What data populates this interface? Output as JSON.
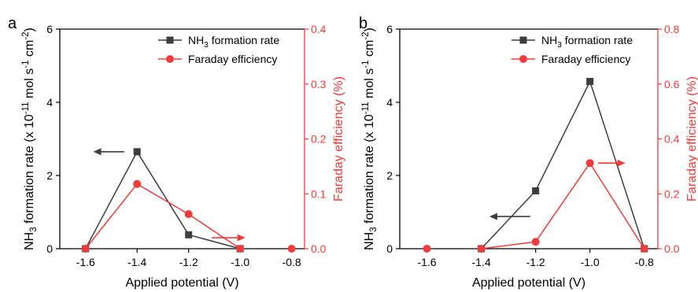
{
  "colors": {
    "rate": "#3d3d3d",
    "fe": "#ee3b3b",
    "axis": "#000000"
  },
  "chart_data": [
    {
      "panel_label": "a",
      "type": "line",
      "xlabel": "Applied potential (V)",
      "ylabel_left_parts": [
        "NH",
        "3",
        " formation rate (x 10",
        "-11",
        " mol s",
        "-1",
        " cm",
        "-2",
        ")"
      ],
      "ylabel_right": "Faraday efficiency (%)",
      "xlim": [
        -1.7,
        -0.75
      ],
      "ylim_left": [
        0,
        6
      ],
      "ylim_right": [
        0,
        0.4
      ],
      "xticks": [
        -1.6,
        -1.4,
        -1.2,
        -1.0,
        -0.8
      ],
      "xtick_labels": [
        "-1.6",
        "-1.4",
        "-1.2",
        "-1.0",
        "-0.8"
      ],
      "yticks_left": [
        0,
        2,
        4,
        6
      ],
      "yticks_left_labels": [
        "0",
        "2",
        "4",
        "6"
      ],
      "yticks_right": [
        0,
        0.1,
        0.2,
        0.3,
        0.4
      ],
      "yticks_right_labels": [
        "0.0",
        "0.1",
        "0.2",
        "0.3",
        "0.4"
      ],
      "legend": {
        "position": "top-right",
        "entries": [
          {
            "parts": [
              "NH",
              "3",
              " formation rate"
            ]
          },
          {
            "parts": [
              "Faraday efficiency"
            ]
          }
        ]
      },
      "series": [
        {
          "name": "NH3 formation rate",
          "axis": "left",
          "marker": "square",
          "x": [
            -1.6,
            -1.4,
            -1.2,
            -1.0
          ],
          "y": [
            0,
            2.65,
            0.38,
            0
          ]
        },
        {
          "name": "Faraday efficiency",
          "axis": "right",
          "marker": "circle",
          "x": [
            -1.6,
            -1.4,
            -1.2,
            -1.0
          ],
          "y": [
            0,
            0.118,
            0.063,
            0
          ]
        }
      ],
      "extra_markers": [
        {
          "series": "Faraday efficiency",
          "x": [
            -0.8
          ],
          "y": [
            0
          ]
        }
      ],
      "arrows": [
        {
          "direction": "left",
          "axis": "left",
          "x_from": -1.45,
          "x_to": -1.57,
          "y": 2.65
        },
        {
          "direction": "right",
          "axis": "right",
          "x_from": -1.11,
          "x_to": -0.98,
          "y": 0.02
        }
      ]
    },
    {
      "panel_label": "b",
      "type": "line",
      "xlabel": "Applied potential (V)",
      "ylabel_left_parts": [
        "NH",
        "3",
        " formation rate (x 10",
        "-11",
        " mol s",
        "-1",
        " cm",
        "-2",
        ")"
      ],
      "ylabel_right": "Faraday efficiency (%)",
      "xlim": [
        -1.7,
        -0.75
      ],
      "ylim_left": [
        0,
        6
      ],
      "ylim_right": [
        0,
        0.8
      ],
      "xticks": [
        -1.6,
        -1.4,
        -1.2,
        -1.0,
        -0.8
      ],
      "xtick_labels": [
        "-1.6",
        "-1.4",
        "-1.2",
        "-1.0",
        "-0.8"
      ],
      "yticks_left": [
        0,
        2,
        4,
        6
      ],
      "yticks_left_labels": [
        "0",
        "2",
        "4",
        "6"
      ],
      "yticks_right": [
        0,
        0.2,
        0.4,
        0.6,
        0.8
      ],
      "yticks_right_labels": [
        "0.0",
        "0.2",
        "0.4",
        "0.6",
        "0.8"
      ],
      "legend": {
        "position": "top-right",
        "entries": [
          {
            "parts": [
              "NH",
              "3",
              " formation rate"
            ]
          },
          {
            "parts": [
              "Faraday efficiency"
            ]
          }
        ]
      },
      "series": [
        {
          "name": "NH3 formation rate",
          "axis": "left",
          "marker": "square",
          "x": [
            -1.4,
            -1.2,
            -1.0,
            -0.8
          ],
          "y": [
            0,
            1.58,
            4.57,
            0
          ]
        },
        {
          "name": "Faraday efficiency",
          "axis": "right",
          "marker": "circle",
          "x": [
            -1.4,
            -1.2,
            -1.0,
            -0.8
          ],
          "y": [
            0,
            0.025,
            0.312,
            0
          ]
        }
      ],
      "extra_markers": [
        {
          "series": "Faraday efficiency",
          "x": [
            -1.6
          ],
          "y": [
            0
          ]
        }
      ],
      "arrows": [
        {
          "direction": "left",
          "axis": "left",
          "x_from": -1.22,
          "x_to": -1.37,
          "y": 0.88
        },
        {
          "direction": "right",
          "axis": "right",
          "x_from": -0.97,
          "x_to": -0.87,
          "y": 0.312
        }
      ]
    }
  ]
}
